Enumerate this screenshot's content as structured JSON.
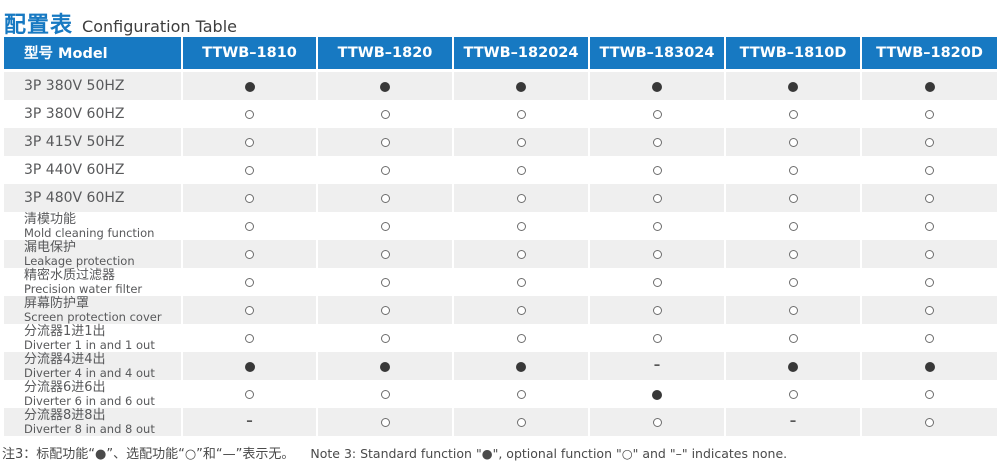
{
  "title": {
    "zh": "配置表",
    "en": "Configuration Table"
  },
  "colors": {
    "header_blue": "#1779c2",
    "row_shade_gray": "#efefef",
    "symbol_dark": "#383838",
    "label_gray": "#58595b"
  },
  "table": {
    "headers": [
      "型号 Model",
      "TTWB–1810",
      "TTWB–1820",
      "TTWB–182024",
      "TTWB–183024",
      "TTWB–1810D",
      "TTWB–1820D"
    ],
    "rows": [
      {
        "label": "3P 380V 50HZ",
        "sublabel": "",
        "cells": [
          "●",
          "●",
          "●",
          "●",
          "●",
          "●"
        ]
      },
      {
        "label": "3P 380V 60HZ",
        "sublabel": "",
        "cells": [
          "○",
          "○",
          "○",
          "○",
          "○",
          "○"
        ]
      },
      {
        "label": "3P 415V 50HZ",
        "sublabel": "",
        "cells": [
          "○",
          "○",
          "○",
          "○",
          "○",
          "○"
        ]
      },
      {
        "label": "3P 440V 60HZ",
        "sublabel": "",
        "cells": [
          "○",
          "○",
          "○",
          "○",
          "○",
          "○"
        ]
      },
      {
        "label": "3P 480V 60HZ",
        "sublabel": "",
        "cells": [
          "○",
          "○",
          "○",
          "○",
          "○",
          "○"
        ]
      },
      {
        "label": "清模功能",
        "sublabel": "Mold cleaning function",
        "cells": [
          "○",
          "○",
          "○",
          "○",
          "○",
          "○"
        ]
      },
      {
        "label": "漏电保护",
        "sublabel": "Leakage protection",
        "cells": [
          "○",
          "○",
          "○",
          "○",
          "○",
          "○"
        ]
      },
      {
        "label": "精密水质过滤器",
        "sublabel": "Precision water filter",
        "cells": [
          "○",
          "○",
          "○",
          "○",
          "○",
          "○"
        ]
      },
      {
        "label": "屏幕防护罩",
        "sublabel": "Screen protection cover",
        "cells": [
          "○",
          "○",
          "○",
          "○",
          "○",
          "○"
        ]
      },
      {
        "label": "分流器1进1出",
        "sublabel": "Diverter 1 in and 1 out",
        "cells": [
          "○",
          "○",
          "○",
          "○",
          "○",
          "○"
        ]
      },
      {
        "label": "分流器4进4出",
        "sublabel": "Diverter 4 in and 4 out",
        "cells": [
          "●",
          "●",
          "●",
          "–",
          "●",
          "●"
        ]
      },
      {
        "label": "分流器6进6出",
        "sublabel": "Diverter 6 in and 6 out",
        "cells": [
          "○",
          "○",
          "○",
          "●",
          "○",
          "○"
        ]
      },
      {
        "label": "分流器8进8出",
        "sublabel": "Diverter 8 in and 8 out",
        "cells": [
          "–",
          "○",
          "○",
          "○",
          "–",
          "○"
        ]
      }
    ],
    "legend": {
      "standard_symbol": "●",
      "optional_symbol": "○",
      "none_symbol": "–"
    }
  },
  "note": {
    "zh": "注3：标配功能“●”、选配功能“○”和“—”表示无。",
    "en": "Note 3: Standard function \"●\", optional function \"○\" and \"–\" indicates none."
  }
}
